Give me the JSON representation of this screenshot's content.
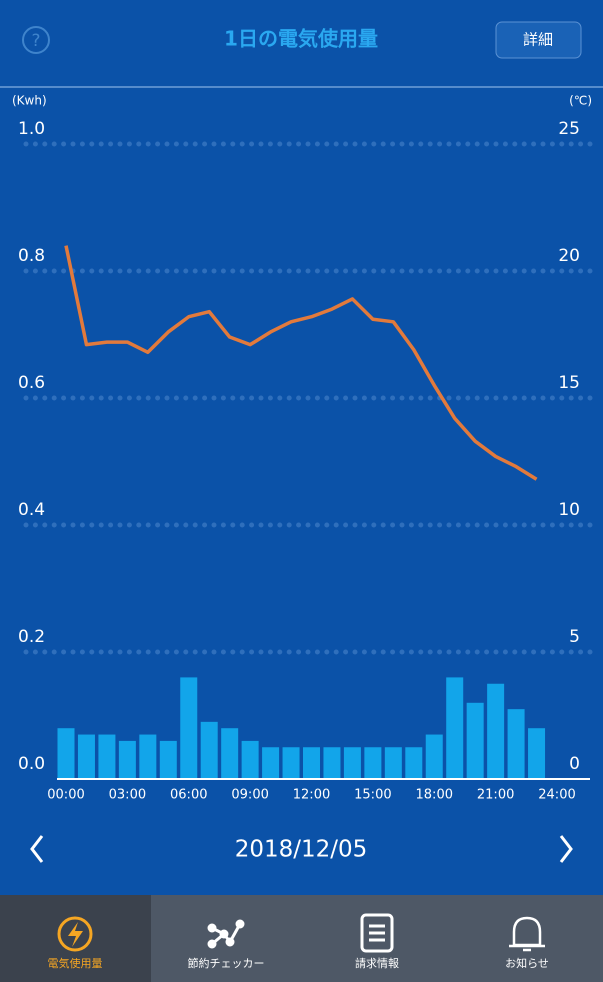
{
  "header": {
    "title": "1日の電気使用量",
    "button": "詳細"
  },
  "chart_data": {
    "type": "combo",
    "y_label": "(Kwh)",
    "y2_label": "(℃)",
    "x": [
      0,
      1,
      2,
      3,
      4,
      5,
      6,
      7,
      8,
      9,
      10,
      11,
      12,
      13,
      14,
      15,
      16,
      17,
      18,
      19,
      20,
      21,
      22,
      23
    ],
    "xlim": [
      0,
      24
    ],
    "xticks": [
      {
        "value": 0,
        "label": "00:00"
      },
      {
        "value": 3,
        "label": "03:00"
      },
      {
        "value": 6,
        "label": "06:00"
      },
      {
        "value": 9,
        "label": "09:00"
      },
      {
        "value": 12,
        "label": "12:00"
      },
      {
        "value": 15,
        "label": "15:00"
      },
      {
        "value": 18,
        "label": "18:00"
      },
      {
        "value": 21,
        "label": "21:00"
      },
      {
        "value": 24,
        "label": "24:00"
      }
    ],
    "ylim": [
      0,
      1
    ],
    "yticks": [
      {
        "value": 0,
        "label": "0.0"
      },
      0.2,
      0.4,
      0.6,
      0.8,
      {
        "value": 1,
        "label": "1.0"
      }
    ],
    "y2lim": [
      0,
      25
    ],
    "y2ticks": [
      0,
      5,
      10,
      15,
      20,
      25
    ],
    "grid": true,
    "series": [
      {
        "type": "bar",
        "color": "#12a5ea",
        "values": [
          0.08,
          0.07,
          0.07,
          0.06,
          0.07,
          0.06,
          0.16,
          0.09,
          0.08,
          0.06,
          0.05,
          0.05,
          0.05,
          0.05,
          0.05,
          0.05,
          0.05,
          0.05,
          0.07,
          0.16,
          0.12,
          0.15,
          0.11,
          0.08
        ]
      },
      {
        "type": "line",
        "axis": "y2",
        "color": "#e27a3c",
        "values": [
          21.0,
          17.1,
          17.2,
          17.2,
          16.8,
          17.6,
          18.2,
          18.4,
          17.4,
          17.1,
          17.6,
          18.0,
          18.2,
          18.5,
          18.9,
          18.1,
          18.0,
          16.9,
          15.5,
          14.2,
          13.3,
          12.7,
          12.3,
          11.8
        ]
      }
    ]
  },
  "date": "2018/12/05",
  "nav": [
    "電気使用量",
    "節約チェッカー",
    "請求情報",
    "お知らせ"
  ]
}
